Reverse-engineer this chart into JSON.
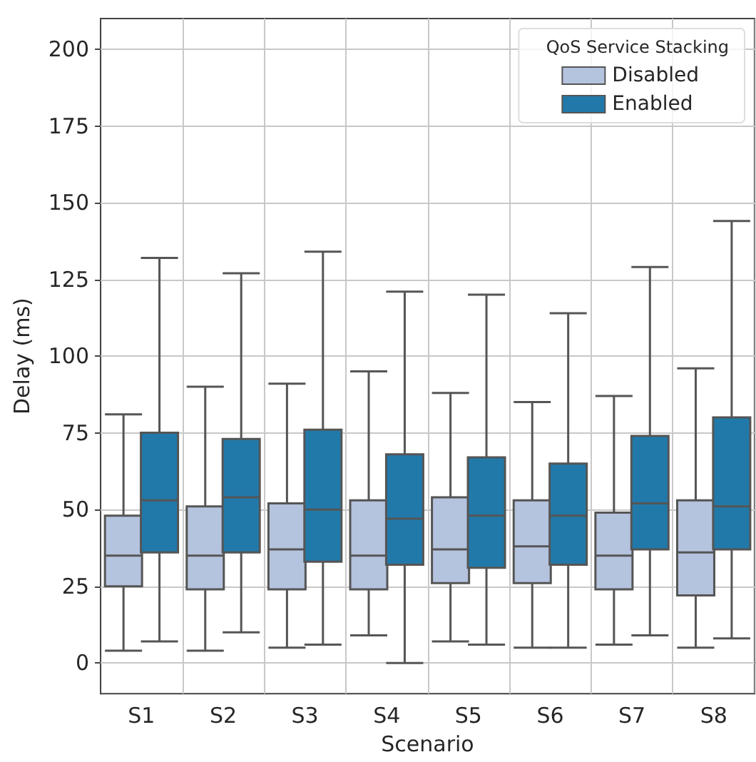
{
  "chart_data": {
    "type": "box",
    "xlabel": "Scenario",
    "ylabel": "Delay (ms)",
    "legend_title": "QoS Service Stacking",
    "categories": [
      "S1",
      "S2",
      "S3",
      "S4",
      "S5",
      "S6",
      "S7",
      "S8"
    ],
    "ylim": [
      -10,
      210
    ],
    "yticks": [
      0,
      25,
      50,
      75,
      100,
      125,
      150,
      175,
      200
    ],
    "grid": true,
    "legend": "top right",
    "series": [
      {
        "name": "Disabled",
        "color": "#b4c3de",
        "boxes": [
          {
            "low": 4,
            "q1": 25,
            "median": 35,
            "q3": 48,
            "high": 81
          },
          {
            "low": 4,
            "q1": 24,
            "median": 35,
            "q3": 51,
            "high": 90
          },
          {
            "low": 5,
            "q1": 24,
            "median": 37,
            "q3": 52,
            "high": 91
          },
          {
            "low": 9,
            "q1": 24,
            "median": 35,
            "q3": 53,
            "high": 95
          },
          {
            "low": 7,
            "q1": 26,
            "median": 37,
            "q3": 54,
            "high": 88
          },
          {
            "low": 5,
            "q1": 26,
            "median": 38,
            "q3": 53,
            "high": 85
          },
          {
            "low": 6,
            "q1": 24,
            "median": 35,
            "q3": 49,
            "high": 87
          },
          {
            "low": 5,
            "q1": 22,
            "median": 36,
            "q3": 53,
            "high": 96
          }
        ]
      },
      {
        "name": "Enabled",
        "color": "#2179aa",
        "boxes": [
          {
            "low": 7,
            "q1": 36,
            "median": 53,
            "q3": 75,
            "high": 132
          },
          {
            "low": 10,
            "q1": 36,
            "median": 54,
            "q3": 73,
            "high": 127
          },
          {
            "low": 6,
            "q1": 33,
            "median": 50,
            "q3": 76,
            "high": 134
          },
          {
            "low": 0,
            "q1": 32,
            "median": 47,
            "q3": 68,
            "high": 121
          },
          {
            "low": 6,
            "q1": 31,
            "median": 48,
            "q3": 67,
            "high": 120
          },
          {
            "low": 5,
            "q1": 32,
            "median": 48,
            "q3": 65,
            "high": 114
          },
          {
            "low": 9,
            "q1": 37,
            "median": 52,
            "q3": 74,
            "high": 129
          },
          {
            "low": 8,
            "q1": 37,
            "median": 51,
            "q3": 80,
            "high": 144
          }
        ]
      }
    ]
  }
}
